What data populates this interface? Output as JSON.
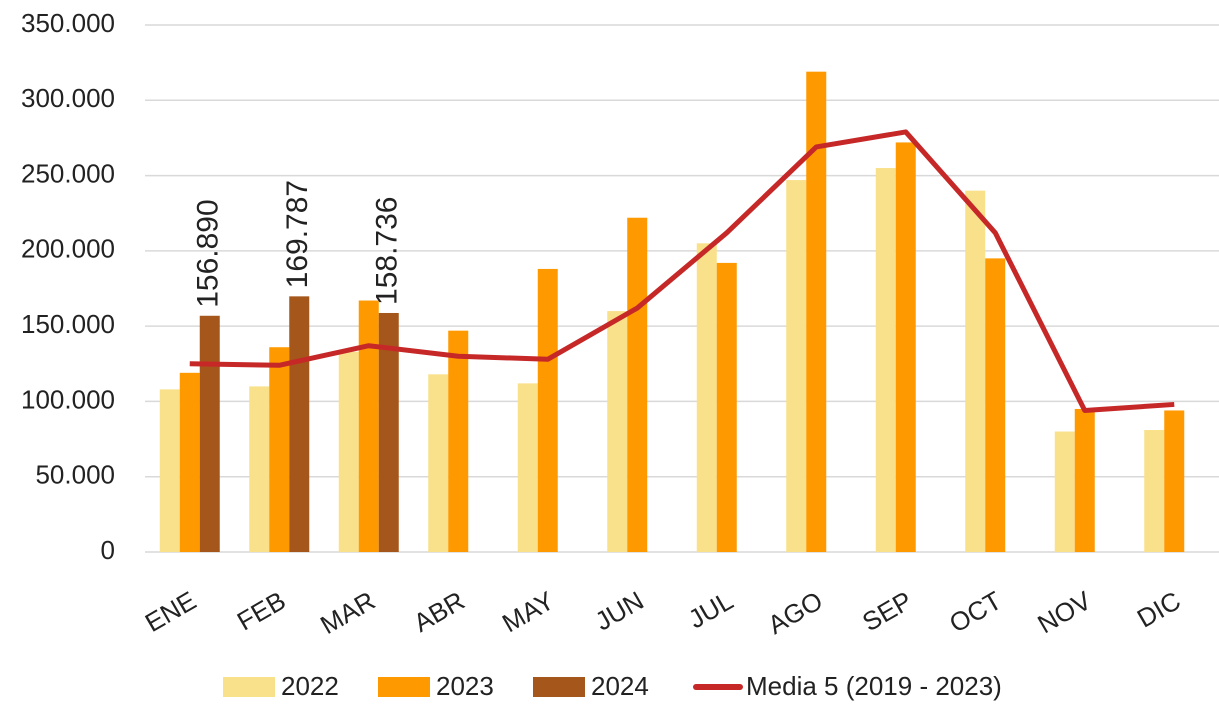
{
  "chart_data": {
    "type": "bar-line",
    "categories": [
      "ENE",
      "FEB",
      "MAR",
      "ABR",
      "MAY",
      "JUN",
      "JUL",
      "AGO",
      "SEP",
      "OCT",
      "NOV",
      "DIC"
    ],
    "series": [
      {
        "name": "2022",
        "type": "bar",
        "color": "#f9e08a",
        "values": [
          108000,
          110000,
          133000,
          118000,
          112000,
          160000,
          205000,
          247000,
          255000,
          240000,
          80000,
          81000
        ]
      },
      {
        "name": "2023",
        "type": "bar",
        "color": "#ff9900",
        "values": [
          119000,
          136000,
          167000,
          147000,
          188000,
          222000,
          192000,
          319000,
          272000,
          195000,
          95000,
          94000
        ]
      },
      {
        "name": "2024",
        "type": "bar",
        "color": "#a5561a",
        "values": [
          156890,
          169787,
          158736,
          null,
          null,
          null,
          null,
          null,
          null,
          null,
          null,
          null
        ],
        "value_labels": [
          "156.890",
          "169.787",
          "158.736",
          null,
          null,
          null,
          null,
          null,
          null,
          null,
          null,
          null
        ]
      },
      {
        "name": "Media 5 (2019 - 2023)",
        "type": "line",
        "color": "#c62828",
        "values": [
          125000,
          124000,
          137000,
          130000,
          128000,
          162000,
          212000,
          269000,
          279000,
          212000,
          94000,
          98000
        ]
      }
    ],
    "ylim": [
      0,
      350000
    ],
    "yticks": [
      0,
      {
        "value": 50000,
        "label": "50.000"
      },
      {
        "value": 100000,
        "label": "100.000"
      },
      {
        "value": 150000,
        "label": "150.000"
      },
      {
        "value": 200000,
        "label": "200.000"
      },
      {
        "value": 250000,
        "label": "250.000"
      },
      {
        "value": 300000,
        "label": "300.000"
      },
      {
        "value": 350000,
        "label": "350.000"
      }
    ],
    "grid": true
  }
}
